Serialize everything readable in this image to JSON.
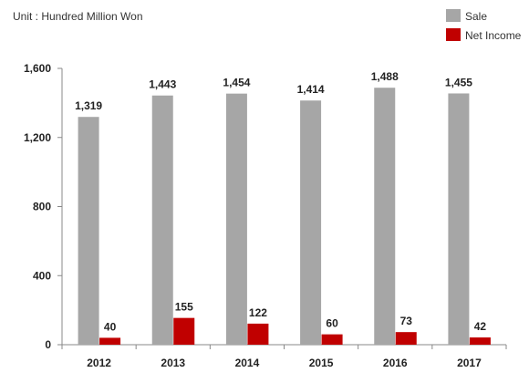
{
  "chart_data": {
    "type": "bar",
    "unit_label": "Unit : Hundred Million Won",
    "categories": [
      "2012",
      "2013",
      "2014",
      "2015",
      "2016",
      "2017"
    ],
    "series": [
      {
        "name": "Sale",
        "color": "#a6a6a6",
        "values": [
          1319,
          1443,
          1454,
          1414,
          1488,
          1455
        ],
        "labels": [
          "1,319",
          "1,443",
          "1,454",
          "1,414",
          "1,488",
          "1,455"
        ]
      },
      {
        "name": "Net Income",
        "color": "#c00000",
        "values": [
          40,
          155,
          122,
          60,
          73,
          42
        ],
        "labels": [
          "40",
          "155",
          "122",
          "60",
          "73",
          "42"
        ]
      }
    ],
    "yticks": [
      0,
      400,
      800,
      1200,
      1600
    ],
    "ytick_labels": [
      "0",
      "400",
      "800",
      "1,200",
      "1,600"
    ],
    "ylim": [
      0,
      1600
    ],
    "grid": false,
    "legend_position": "top-right"
  }
}
